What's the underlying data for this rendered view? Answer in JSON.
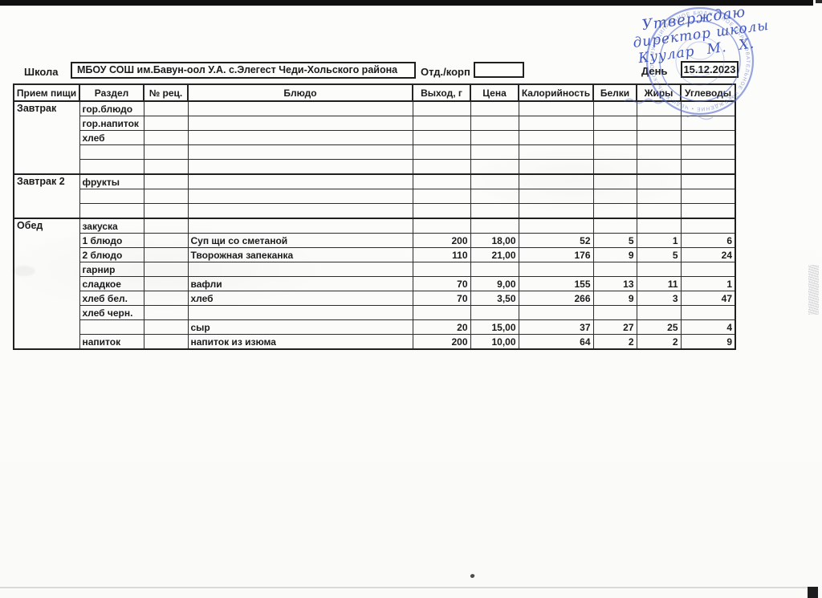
{
  "form": {
    "school_label": "Школа",
    "school_value": "МБОУ СОШ им.Бавун-оол У.А. с.Элегест Чеди-Хольского района",
    "dept_label": "Отд./корп",
    "dept_value": "",
    "day_label": "День",
    "day_value": "15.12.2023"
  },
  "handwriting": {
    "line1": "Утверждаю",
    "line2": "директор школы",
    "line3": "Куулар  М. Х."
  },
  "stamp": {
    "ring_text": "• МУНИЦИПАЛЬНОЕ БЮДЖЕТНОЕ ОБРАЗОВАТЕЛЬНОЕ УЧРЕЖДЕНИЕ • ЧЕДИ-ХОЛЬСКОГО РАЙОНА",
    "color": "#5a6fd0"
  },
  "table": {
    "headers": [
      "Прием пищи",
      "Раздел",
      "№ рец.",
      "Блюдо",
      "Выход, г",
      "Цена",
      "Калорийность",
      "Белки",
      "Жиры",
      "Углеводы"
    ],
    "sections": [
      {
        "meal": "Завтрак",
        "rows": [
          [
            "гор.блюдо",
            "",
            "",
            "",
            "",
            "",
            "",
            "",
            ""
          ],
          [
            "гор.напиток",
            "",
            "",
            "",
            "",
            "",
            "",
            "",
            ""
          ],
          [
            "хлеб",
            "",
            "",
            "",
            "",
            "",
            "",
            "",
            ""
          ],
          [
            "",
            "",
            "",
            "",
            "",
            "",
            "",
            "",
            ""
          ],
          [
            "",
            "",
            "",
            "",
            "",
            "",
            "",
            "",
            ""
          ]
        ]
      },
      {
        "meal": "Завтрак 2",
        "rows": [
          [
            "фрукты",
            "",
            "",
            "",
            "",
            "",
            "",
            "",
            ""
          ],
          [
            "",
            "",
            "",
            "",
            "",
            "",
            "",
            "",
            ""
          ],
          [
            "",
            "",
            "",
            "",
            "",
            "",
            "",
            "",
            ""
          ]
        ]
      },
      {
        "meal": "Обед",
        "rows": [
          [
            "закуска",
            "",
            "",
            "",
            "",
            "",
            "",
            "",
            ""
          ],
          [
            "1 блюдо",
            "",
            "Суп щи со сметаной",
            "200",
            "18,00",
            "52",
            "5",
            "1",
            "6"
          ],
          [
            "2 блюдо",
            "",
            "Творожная запеканка",
            "110",
            "21,00",
            "176",
            "9",
            "5",
            "24"
          ],
          [
            "гарнир",
            "",
            "",
            "",
            "",
            "",
            "",
            "",
            ""
          ],
          [
            "сладкое",
            "",
            "вафли",
            "70",
            "9,00",
            "155",
            "13",
            "11",
            "1"
          ],
          [
            "хлеб бел.",
            "",
            "хлеб",
            "70",
            "3,50",
            "266",
            "9",
            "3",
            "47"
          ],
          [
            "хлеб черн.",
            "",
            "",
            "",
            "",
            "",
            "",
            "",
            ""
          ],
          [
            "",
            "",
            "сыр",
            "20",
            "15,00",
            "37",
            "27",
            "25",
            "4"
          ],
          [
            "напиток",
            "",
            "напиток из изюма",
            "200",
            "10,00",
            "64",
            "2",
            "2",
            "9"
          ]
        ]
      }
    ]
  }
}
